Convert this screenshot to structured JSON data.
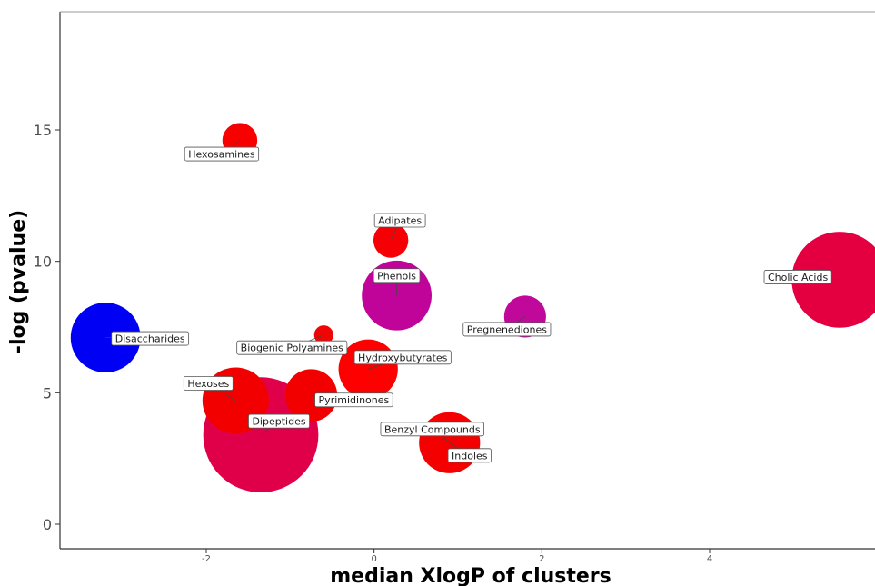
{
  "chart_data": {
    "type": "scatter",
    "title": "",
    "xlabel": "median XlogP of clusters",
    "ylabel": "-log (pvalue)",
    "xlim": [
      -3.5,
      6.0
    ],
    "ylim": [
      -1.0,
      19.5
    ],
    "x_ticks": [
      {
        "value": -2,
        "label": "-2"
      },
      {
        "value": 0,
        "label": "0"
      },
      {
        "value": 2,
        "label": "2"
      },
      {
        "value": 4,
        "label": "4"
      }
    ],
    "y_ticks": [
      {
        "value": 0,
        "label": "0"
      },
      {
        "value": 5,
        "label": "5"
      },
      {
        "value": 10,
        "label": "10"
      },
      {
        "value": 15,
        "label": "15"
      }
    ],
    "grid": false,
    "legend": "none",
    "points": [
      {
        "label": "Hexosamines",
        "x": -1.6,
        "y": 14.6,
        "size": 2.0,
        "color": "#f90000"
      },
      {
        "label": "Adipates",
        "x": 0.2,
        "y": 10.8,
        "size": 2.0,
        "color": "#f50005"
      },
      {
        "label": "Cholic Acids",
        "x": 5.55,
        "y": 9.3,
        "size": 5.5,
        "color": "#e40040"
      },
      {
        "label": "Phenols",
        "x": 0.27,
        "y": 8.7,
        "size": 4.0,
        "color": "#c00399"
      },
      {
        "label": "Pregnenediones",
        "x": 1.8,
        "y": 7.9,
        "size": 2.4,
        "color": "#c0089a"
      },
      {
        "label": "Disaccharides",
        "x": -3.2,
        "y": 7.1,
        "size": 4.0,
        "color": "#0000f5"
      },
      {
        "label": "Biogenic Polyamines",
        "x": -0.6,
        "y": 7.2,
        "size": 1.1,
        "color": "#f00505"
      },
      {
        "label": "Hydroxybutyrates",
        "x": -0.07,
        "y": 5.9,
        "size": 3.4,
        "color": "#ff0000"
      },
      {
        "label": "Hexoses",
        "x": -1.65,
        "y": 4.7,
        "size": 3.8,
        "color": "#f20000"
      },
      {
        "label": "Pyrimidinones",
        "x": -0.75,
        "y": 4.9,
        "size": 3.0,
        "color": "#f20000"
      },
      {
        "label": "Dipeptides",
        "x": -1.35,
        "y": 3.4,
        "size": 6.6,
        "color": "#e00049"
      },
      {
        "label": "Benzyl Compounds",
        "x": 0.9,
        "y": 3.1,
        "size": 3.5,
        "color": "#f50000"
      },
      {
        "label": "Indoles",
        "x": 0.9,
        "y": 3.1,
        "size": 0,
        "color": "#f50000"
      }
    ]
  }
}
